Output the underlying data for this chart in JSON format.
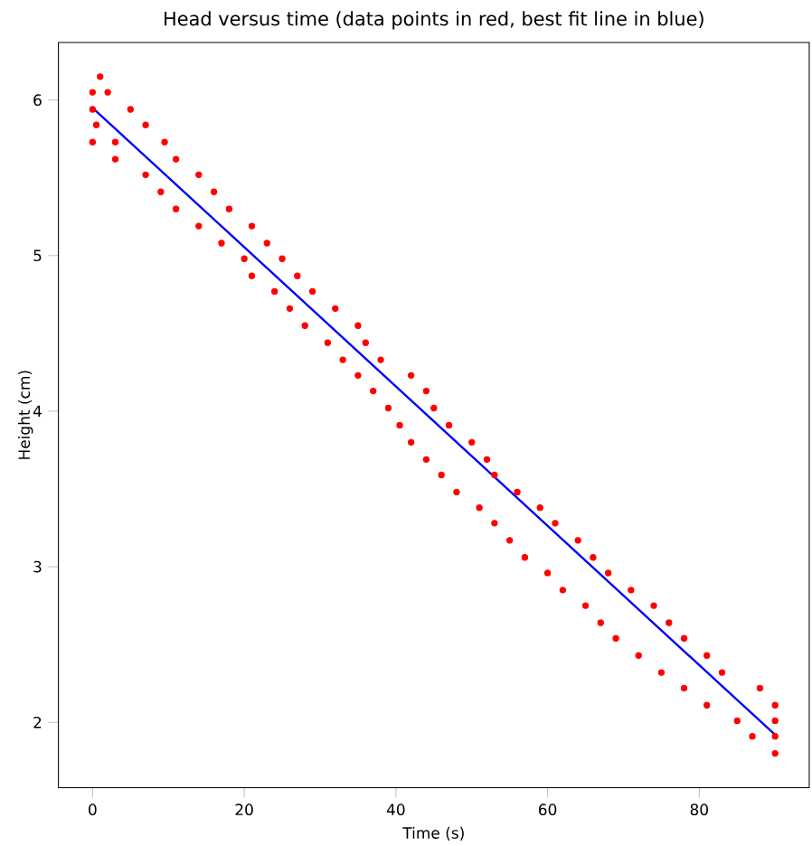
{
  "chart_data": {
    "type": "scatter",
    "title": "Head versus time (data points in red, best fit line in blue)",
    "xlabel": "Time (s)",
    "ylabel": "Height (cm)",
    "xlim": [
      -4.5,
      94.5
    ],
    "ylim": [
      1.58,
      6.37
    ],
    "xticks": [
      0,
      20,
      40,
      60,
      80
    ],
    "yticks": [
      2,
      3,
      4,
      5,
      6
    ],
    "grid": false,
    "series": [
      {
        "color": "#ff0000",
        "marker": "circle",
        "x": [
          1,
          0,
          2,
          0,
          5,
          0.5,
          7,
          0,
          3,
          9.5,
          3,
          11,
          7,
          14,
          9,
          16,
          11,
          18,
          14,
          21,
          17,
          23,
          20,
          25,
          21,
          27,
          24,
          29,
          26,
          32,
          28,
          35,
          31,
          36,
          33,
          38,
          35,
          42,
          37,
          44,
          39,
          45,
          40.5,
          47,
          42,
          50,
          44,
          52,
          46,
          53,
          48,
          56,
          51,
          59,
          53,
          61,
          55,
          64,
          57,
          66,
          60,
          68,
          62,
          71,
          65,
          74,
          67,
          76,
          69,
          78,
          72,
          81,
          75,
          83,
          78,
          88,
          81,
          90,
          85,
          90,
          87,
          90,
          90
        ],
        "values": [
          6.15,
          6.05,
          6.05,
          5.94,
          5.94,
          5.84,
          5.84,
          5.73,
          5.73,
          5.73,
          5.62,
          5.62,
          5.52,
          5.52,
          5.41,
          5.41,
          5.3,
          5.3,
          5.19,
          5.19,
          5.08,
          5.08,
          4.98,
          4.98,
          4.87,
          4.87,
          4.77,
          4.77,
          4.66,
          4.66,
          4.55,
          4.55,
          4.44,
          4.44,
          4.33,
          4.33,
          4.23,
          4.23,
          4.13,
          4.13,
          4.02,
          4.02,
          3.91,
          3.91,
          3.8,
          3.8,
          3.69,
          3.69,
          3.59,
          3.59,
          3.48,
          3.48,
          3.38,
          3.38,
          3.28,
          3.28,
          3.17,
          3.17,
          3.06,
          3.06,
          2.96,
          2.96,
          2.85,
          2.85,
          2.75,
          2.75,
          2.64,
          2.64,
          2.54,
          2.54,
          2.43,
          2.43,
          2.32,
          2.32,
          2.22,
          2.22,
          2.11,
          2.11,
          2.01,
          2.01,
          1.91,
          1.91,
          1.8
        ]
      },
      {
        "type": "line",
        "color": "#0000ff",
        "marker": "none",
        "x": [
          0,
          90
        ],
        "values": [
          5.95,
          1.92
        ]
      }
    ]
  }
}
